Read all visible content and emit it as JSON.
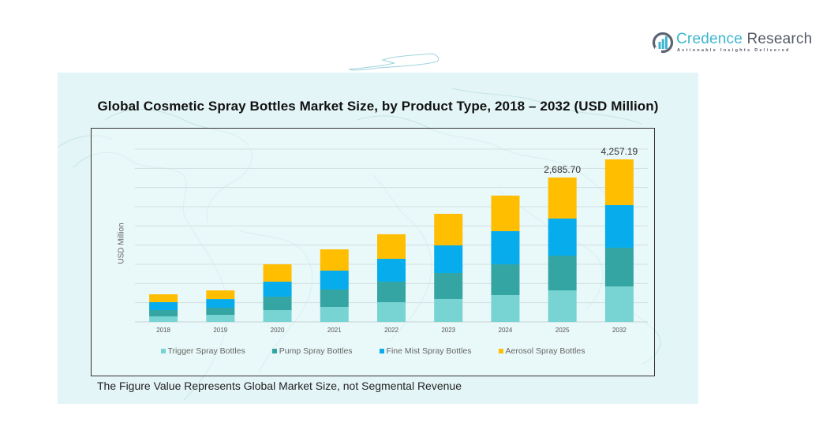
{
  "brand": {
    "name_part1": "Credence",
    "name_part2": " Research",
    "tagline": "Actionable Insights Delivered",
    "logo_icon": "bar-chart-circle-icon"
  },
  "footnote": "The Figure Value Represents Global Market Size, not Segmental Revenue",
  "colors": {
    "trigger": "#78d3d3",
    "pump": "#35a5a3",
    "fine_mist": "#07acec",
    "aerosol": "#ffbe00",
    "panel_bg": "#e4f5f7"
  },
  "chart_data": {
    "type": "bar",
    "stacked": true,
    "title": "Global Cosmetic  Spray Bottles Market Size, by Product Type, 2018 – 2032 (USD Million)",
    "xlabel": "",
    "ylabel": "USD Million",
    "ylim": [
      0,
      4500
    ],
    "grid": true,
    "legend_position": "bottom",
    "categories": [
      "2018",
      "2019",
      "2020",
      "2021",
      "2022",
      "2023",
      "2024",
      "2025",
      "2032"
    ],
    "series": [
      {
        "name": "Trigger Spray Bottles",
        "color": "#78d3d3",
        "values": [
          103,
          132,
          220,
          279,
          367,
          426,
          499,
          587,
          930
        ]
      },
      {
        "name": "Pump Spray Bottles",
        "color": "#35a5a3",
        "values": [
          117,
          132,
          250,
          323,
          382,
          484,
          573,
          646,
          1013
        ]
      },
      {
        "name": "Fine Mist Spray Bottles",
        "color": "#07acec",
        "values": [
          147,
          161,
          279,
          352,
          426,
          514,
          617,
          690,
          1116
        ]
      },
      {
        "name": "Aerosol Spray Bottles",
        "color": "#ffbe00",
        "values": [
          147,
          161,
          323,
          396,
          455,
          587,
          661,
          763,
          1198
        ]
      }
    ],
    "annotations": [
      {
        "category": "2025",
        "text": "2,685.70"
      },
      {
        "category": "2032",
        "text": "4,257.19"
      }
    ]
  }
}
